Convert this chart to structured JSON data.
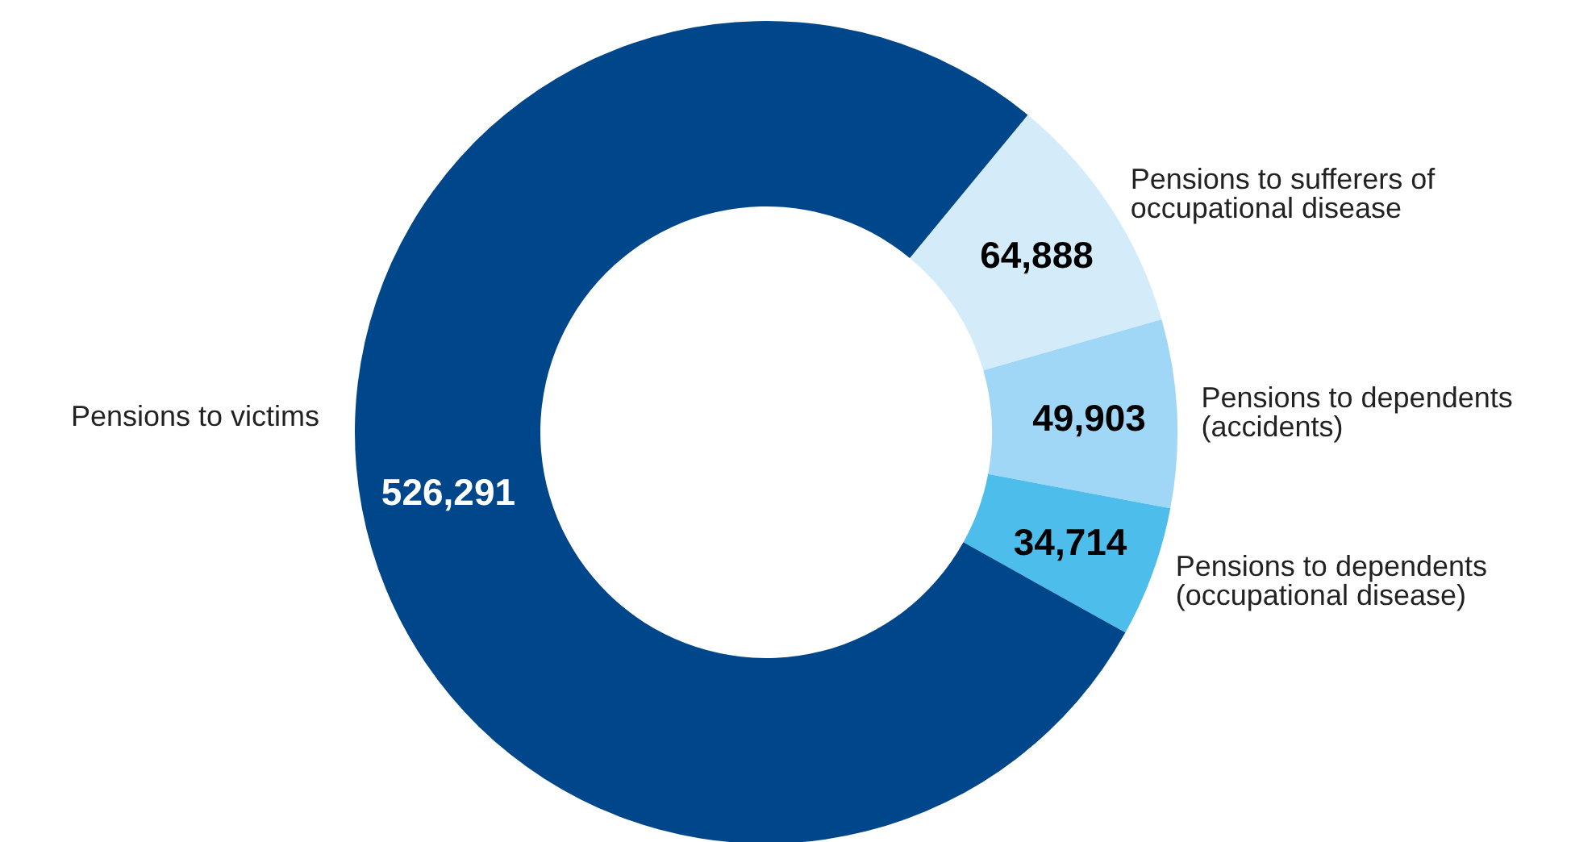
{
  "chart_data": {
    "type": "donut",
    "categories": [
      "Pensions to sufferers of occupational disease",
      "Pensions to dependents (accidents)",
      "Pensions to dependents (occupational disease)",
      "Pensions to victims"
    ],
    "values": [
      64888,
      49903,
      34714,
      526291
    ],
    "colors": [
      "#d4ebfa",
      "#a1d7f6",
      "#4dbdec",
      "#00468b"
    ],
    "value_labels": [
      "64,888",
      "49,903",
      "34,714",
      "526,291"
    ],
    "legend": false
  }
}
